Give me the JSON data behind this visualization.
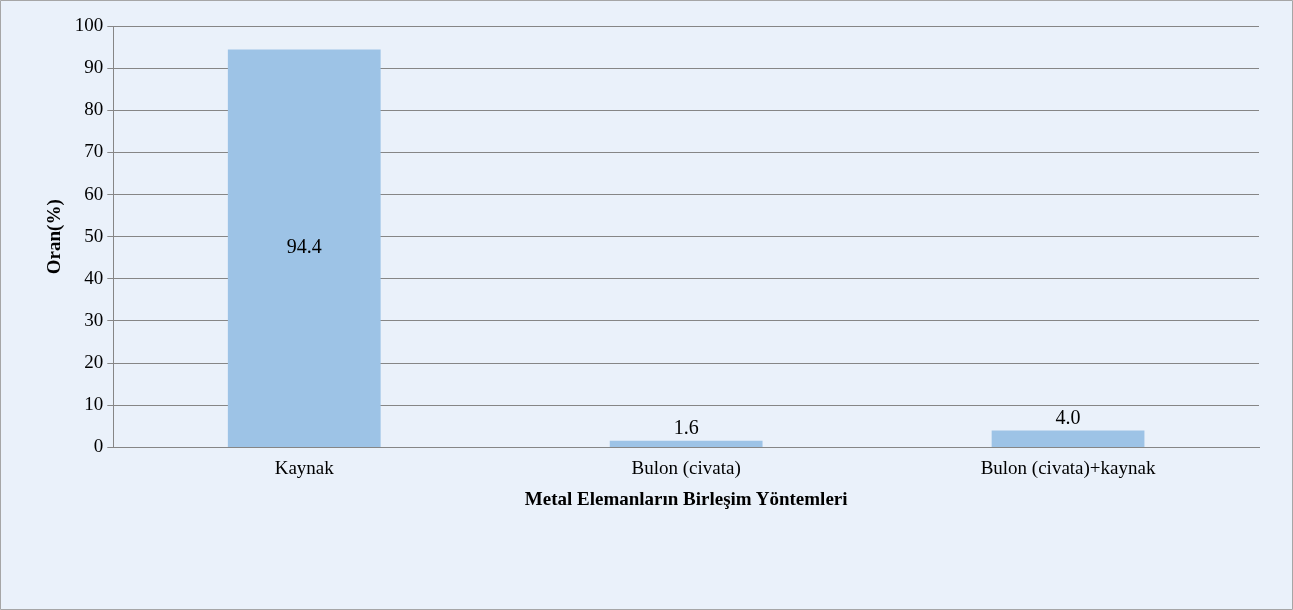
{
  "chart_data": {
    "type": "bar",
    "xlabel": "Metal Elemanların Birleşim Yöntemleri",
    "ylabel": "Oran(%)",
    "categories": [
      "Kaynak",
      "Bulon (civata)",
      "Bulon (civata)+kaynak"
    ],
    "values": [
      94.4,
      1.6,
      4.0
    ],
    "value_labels": [
      "94.4",
      "1.6",
      "4.0"
    ],
    "color": "#9dc3e6",
    "ylim": [
      0,
      100
    ],
    "yticks": [
      0,
      10,
      20,
      30,
      40,
      50,
      60,
      70,
      80,
      90,
      100
    ],
    "grid": "y",
    "legend": false
  }
}
